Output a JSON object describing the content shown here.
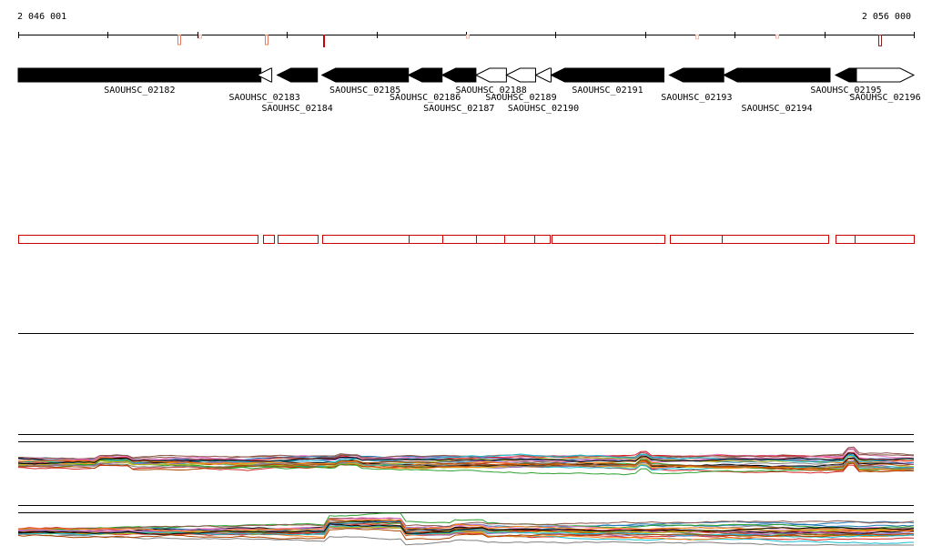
{
  "region": {
    "start_label": "2 046 001",
    "end_label": "2 056 000",
    "start": 2046001,
    "end": 2056000
  },
  "colors": {
    "gene_forward": "#000000",
    "gene_reverse_outline": "#000000",
    "feature_outline": "#cc0000",
    "trace_palette": [
      "#1f77b4",
      "#d62728",
      "#2ca02c",
      "#9467bd",
      "#8c564b",
      "#e377c2",
      "#bcbd22",
      "#17becf",
      "#ff7f0e",
      "#7f7f7f",
      "#000000",
      "#aa4400"
    ]
  },
  "genes": [
    {
      "id": "SAOUHSC_02182",
      "start": 2046001,
      "end": 2048711,
      "strand": "+",
      "filled": true
    },
    {
      "id": "SAOUHSC_02183",
      "start": 2048670,
      "end": 2048832,
      "strand": "-",
      "filled": false
    },
    {
      "id": "SAOUHSC_02184",
      "start": 2048893,
      "end": 2049341,
      "strand": "-",
      "filled": true
    },
    {
      "id": "SAOUHSC_02185",
      "start": 2049392,
      "end": 2050357,
      "strand": "-",
      "filled": true
    },
    {
      "id": "SAOUHSC_02186",
      "start": 2050357,
      "end": 2050733,
      "strand": "-",
      "filled": true
    },
    {
      "id": "SAOUHSC_02187",
      "start": 2050733,
      "end": 2051111,
      "strand": "-",
      "filled": true
    },
    {
      "id": "SAOUHSC_02188",
      "start": 2051111,
      "end": 2051452,
      "strand": "-",
      "filled": false
    },
    {
      "id": "SAOUHSC_02189",
      "start": 2051452,
      "end": 2051778,
      "strand": "-",
      "filled": false
    },
    {
      "id": "SAOUHSC_02190",
      "start": 2051778,
      "end": 2051951,
      "strand": "-",
      "filled": false
    },
    {
      "id": "SAOUHSC_02191",
      "start": 2051951,
      "end": 2053211,
      "strand": "-",
      "filled": true
    },
    {
      "id": "SAOUHSC_02193",
      "start": 2053272,
      "end": 2053878,
      "strand": "-",
      "filled": true
    },
    {
      "id": "SAOUHSC_02194",
      "start": 2053878,
      "end": 2055065,
      "strand": "-",
      "filled": true
    },
    {
      "id": "SAOUHSC_02195",
      "start": 2055126,
      "end": 2055360,
      "strand": "-",
      "filled": true
    },
    {
      "id": "SAOUHSC_02196",
      "start": 2055360,
      "end": 2056000,
      "strand": "+",
      "filled": false
    }
  ],
  "features": [
    {
      "start": 2046001,
      "end": 2048670
    },
    {
      "start": 2048731,
      "end": 2048853
    },
    {
      "start": 2048893,
      "end": 2049341
    },
    {
      "start": 2049392,
      "end": 2050357
    },
    {
      "start": 2050357,
      "end": 2050733
    },
    {
      "start": 2050733,
      "end": 2051111
    },
    {
      "start": 2051111,
      "end": 2051431
    },
    {
      "start": 2051431,
      "end": 2051758
    },
    {
      "start": 2051758,
      "end": 2051931
    },
    {
      "start": 2051951,
      "end": 2053211
    },
    {
      "start": 2053272,
      "end": 2053857
    },
    {
      "start": 2053857,
      "end": 2055045
    },
    {
      "start": 2055126,
      "end": 2055340
    },
    {
      "start": 2055340,
      "end": 2056000
    }
  ],
  "variant_marks": [
    {
      "pos": 2047781,
      "level": 0.75,
      "color": "#e8785a"
    },
    {
      "pos": 2048018,
      "level": 0.25,
      "color": "#f3b7a9"
    },
    {
      "pos": 2048752,
      "level": 0.75,
      "color": "#e8785a"
    },
    {
      "pos": 2049402,
      "level": 1.0,
      "color": "#cc0000"
    },
    {
      "pos": 2050998,
      "level": 0.25,
      "color": "#f3b7a9"
    },
    {
      "pos": 2053559,
      "level": 0.3,
      "color": "#f3b7a9"
    },
    {
      "pos": 2054458,
      "level": 0.25,
      "color": "#f3b7a9"
    },
    {
      "pos": 2055605,
      "level": 0.85,
      "color": "#8b2020"
    }
  ]
}
